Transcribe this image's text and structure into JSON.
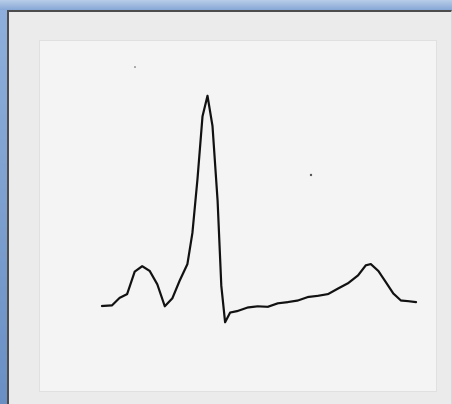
{
  "window": {
    "accent_color": "#7a9bd0",
    "client_background": "#ebebeb",
    "panel_background": "#f4f4f4"
  },
  "waveform": {
    "description_type": "ecg-trace",
    "stroke_color": "#111111",
    "samples": [
      [
        0,
        0.0
      ],
      [
        8,
        0.0
      ],
      [
        14,
        0.04
      ],
      [
        20,
        0.06
      ],
      [
        26,
        0.16
      ],
      [
        32,
        0.19
      ],
      [
        38,
        0.17
      ],
      [
        44,
        0.1
      ],
      [
        50,
        0.0
      ],
      [
        56,
        0.04
      ],
      [
        62,
        0.12
      ],
      [
        68,
        0.2
      ],
      [
        72,
        0.35
      ],
      [
        76,
        0.6
      ],
      [
        80,
        0.9
      ],
      [
        84,
        1.0
      ],
      [
        88,
        0.85
      ],
      [
        92,
        0.5
      ],
      [
        95,
        0.1
      ],
      [
        98,
        -0.08
      ],
      [
        102,
        -0.03
      ],
      [
        108,
        -0.02
      ],
      [
        116,
        -0.01
      ],
      [
        124,
        0.0
      ],
      [
        132,
        0.0
      ],
      [
        140,
        0.01
      ],
      [
        148,
        0.02
      ],
      [
        156,
        0.03
      ],
      [
        164,
        0.04
      ],
      [
        172,
        0.05
      ],
      [
        180,
        0.06
      ],
      [
        188,
        0.08
      ],
      [
        196,
        0.11
      ],
      [
        204,
        0.15
      ],
      [
        210,
        0.19
      ],
      [
        214,
        0.2
      ],
      [
        220,
        0.17
      ],
      [
        226,
        0.11
      ],
      [
        232,
        0.06
      ],
      [
        238,
        0.03
      ],
      [
        244,
        0.02
      ],
      [
        250,
        0.02
      ]
    ]
  }
}
